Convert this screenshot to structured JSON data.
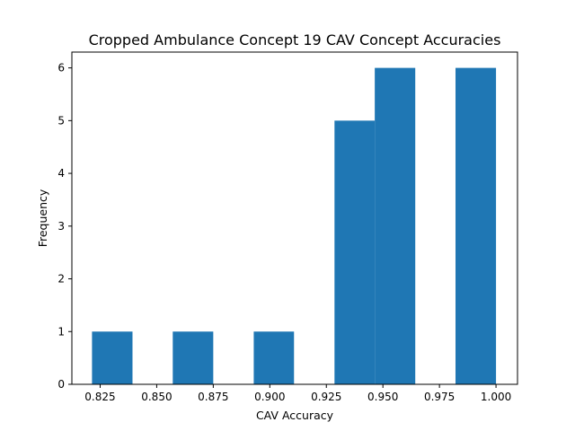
{
  "chart_data": {
    "type": "bar",
    "subtype": "histogram",
    "title": "Cropped Ambulance Concept 19 CAV Concept Accuracies",
    "xlabel": "CAV Accuracy",
    "ylabel": "Frequency",
    "xlim": [
      0.8125,
      1.0095
    ],
    "ylim": [
      0,
      6.3
    ],
    "x_ticks": [
      0.825,
      0.85,
      0.875,
      0.9,
      0.925,
      0.95,
      0.975,
      1.0
    ],
    "x_tick_labels": [
      "0.825",
      "0.850",
      "0.875",
      "0.900",
      "0.925",
      "0.950",
      "0.975",
      "1.000"
    ],
    "y_ticks": [
      0,
      1,
      2,
      3,
      4,
      5,
      6
    ],
    "y_tick_labels": [
      "0",
      "1",
      "2",
      "3",
      "4",
      "5",
      "6"
    ],
    "bar_color": "#1f77b4",
    "grid": false,
    "bins": [
      {
        "x0": 0.8214,
        "x1": 0.8393,
        "value": 1
      },
      {
        "x0": 0.8393,
        "x1": 0.8571,
        "value": 0
      },
      {
        "x0": 0.8571,
        "x1": 0.875,
        "value": 1
      },
      {
        "x0": 0.875,
        "x1": 0.8929,
        "value": 0
      },
      {
        "x0": 0.8929,
        "x1": 0.9107,
        "value": 1
      },
      {
        "x0": 0.9107,
        "x1": 0.9286,
        "value": 0
      },
      {
        "x0": 0.9286,
        "x1": 0.9464,
        "value": 5
      },
      {
        "x0": 0.9464,
        "x1": 0.9643,
        "value": 6
      },
      {
        "x0": 0.9643,
        "x1": 0.9821,
        "value": 0
      },
      {
        "x0": 0.9821,
        "x1": 1.0,
        "value": 6
      }
    ]
  }
}
